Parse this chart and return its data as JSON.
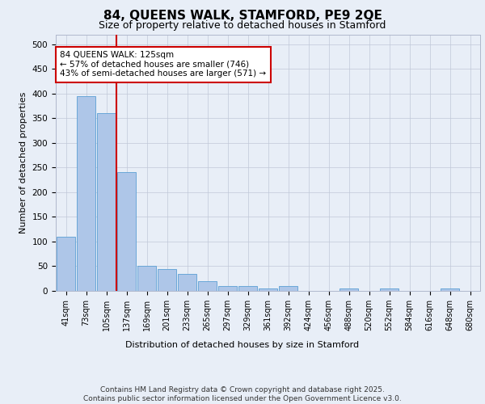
{
  "title1": "84, QUEENS WALK, STAMFORD, PE9 2QE",
  "title2": "Size of property relative to detached houses in Stamford",
  "xlabel": "Distribution of detached houses by size in Stamford",
  "ylabel": "Number of detached properties",
  "categories": [
    "41sqm",
    "73sqm",
    "105sqm",
    "137sqm",
    "169sqm",
    "201sqm",
    "233sqm",
    "265sqm",
    "297sqm",
    "329sqm",
    "361sqm",
    "392sqm",
    "424sqm",
    "456sqm",
    "488sqm",
    "520sqm",
    "552sqm",
    "584sqm",
    "616sqm",
    "648sqm",
    "680sqm"
  ],
  "values": [
    110,
    395,
    360,
    240,
    50,
    45,
    35,
    20,
    10,
    10,
    5,
    10,
    0,
    0,
    5,
    0,
    5,
    0,
    0,
    5,
    0
  ],
  "bar_color": "#aec6e8",
  "bar_edge_color": "#5a9fd4",
  "vline_color": "#cc0000",
  "annotation_text": "84 QUEENS WALK: 125sqm\n← 57% of detached houses are smaller (746)\n43% of semi-detached houses are larger (571) →",
  "annotation_box_color": "#ffffff",
  "annotation_box_edge": "#cc0000",
  "background_color": "#e8eef7",
  "ylim": [
    0,
    520
  ],
  "yticks": [
    0,
    50,
    100,
    150,
    200,
    250,
    300,
    350,
    400,
    450,
    500
  ],
  "footer": "Contains HM Land Registry data © Crown copyright and database right 2025.\nContains public sector information licensed under the Open Government Licence v3.0.",
  "title1_fontsize": 11,
  "title2_fontsize": 9,
  "annotation_fontsize": 7.5,
  "footer_fontsize": 6.5,
  "ylabel_fontsize": 8,
  "xlabel_fontsize": 8
}
